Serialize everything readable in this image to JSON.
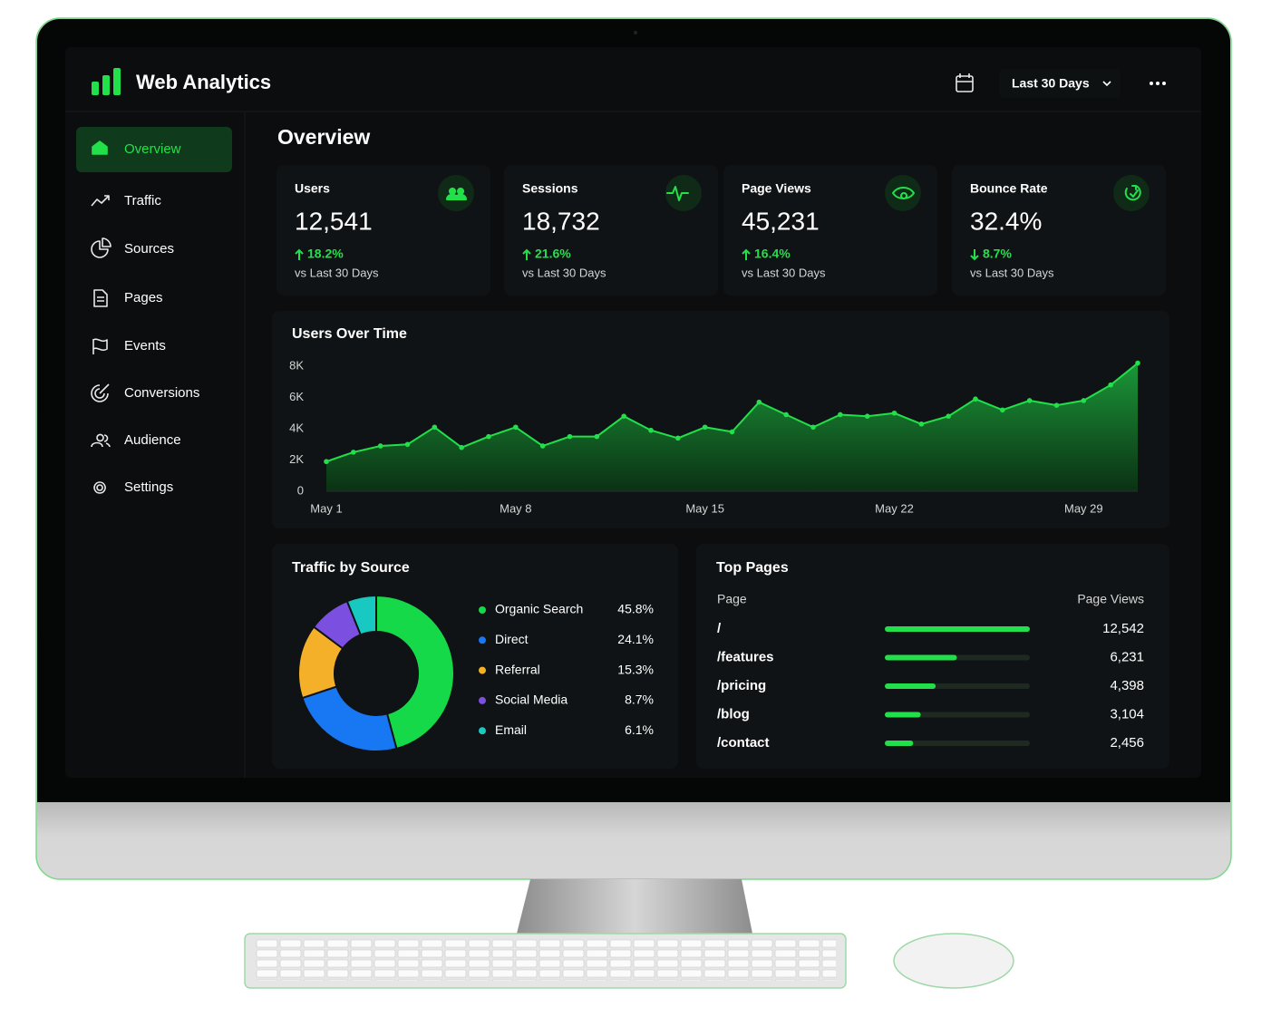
{
  "header": {
    "title": "Web Analytics",
    "date_range": "Last 30 Days"
  },
  "nav": {
    "items": [
      "Overview",
      "Traffic",
      "Sources",
      "Pages",
      "Events",
      "Conversions",
      "Audience",
      "Settings"
    ],
    "active": 0
  },
  "page_title": "Overview",
  "kpis": [
    {
      "label": "Users",
      "value": "12,541",
      "change": "18.2%",
      "trend": "up",
      "comparison": "vs Last 30 Days"
    },
    {
      "label": "Sessions",
      "value": "18,732",
      "change": "21.6%",
      "trend": "up",
      "comparison": "vs Last 30 Days"
    },
    {
      "label": "Page Views",
      "value": "45,231",
      "change": "16.4%",
      "trend": "up",
      "comparison": "vs Last 30 Days"
    },
    {
      "label": "Bounce Rate",
      "value": "32.4%",
      "change": "8.7%",
      "trend": "down",
      "comparison": "vs Last 30 Days"
    }
  ],
  "chart_data": [
    {
      "type": "line",
      "title": "Users Over Time",
      "categories": [
        "May 1",
        null,
        null,
        null,
        null,
        null,
        null,
        "May 8",
        null,
        null,
        null,
        null,
        null,
        null,
        "May 15",
        null,
        null,
        null,
        null,
        null,
        null,
        "May 22",
        null,
        null,
        null,
        null,
        null,
        null,
        "May 29",
        null,
        null
      ],
      "values": [
        1900,
        2500,
        2900,
        3000,
        4100,
        2800,
        3500,
        4100,
        2900,
        3500,
        3500,
        4800,
        3900,
        3400,
        4100,
        3800,
        5700,
        4900,
        4100,
        4900,
        4800,
        5000,
        4300,
        4800,
        5900,
        5200,
        5800,
        5500,
        5800,
        6800,
        8200
      ],
      "color": "#22e04a",
      "ylim": [
        0,
        8000
      ],
      "yticks": [
        0,
        {
          "value": 2000,
          "label": "2K"
        },
        {
          "value": 4000,
          "label": "4K"
        },
        {
          "value": 6000,
          "label": "6K"
        },
        {
          "value": 8000,
          "label": "8K"
        }
      ],
      "grid": false
    },
    {
      "type": "pie",
      "title": "Traffic by Source",
      "donut": true,
      "categories": [
        "Organic Search",
        "Direct",
        "Referral",
        "Social Media",
        "Email"
      ],
      "values": [
        45.8,
        24.1,
        15.3,
        8.7,
        6.1
      ],
      "value_labels": [
        "45.8%",
        "24.1%",
        "15.3%",
        "8.7%",
        "6.1%"
      ],
      "colors": [
        "#16d94a",
        "#1877f2",
        "#f5b02a",
        "#7b4fe0",
        "#17c9c0"
      ]
    },
    {
      "type": "bar",
      "title": "Top Pages",
      "orientation": "horizontal",
      "column_headers": [
        "Page",
        "Page Views"
      ],
      "categories": [
        "/",
        "/features",
        "/pricing",
        "/blog",
        "/contact"
      ],
      "values": [
        12542,
        6231,
        4398,
        3104,
        2456
      ],
      "value_labels": [
        "12,542",
        "6,231",
        "4,398",
        "3,104",
        "2,456"
      ],
      "color": "#22e04a"
    }
  ]
}
